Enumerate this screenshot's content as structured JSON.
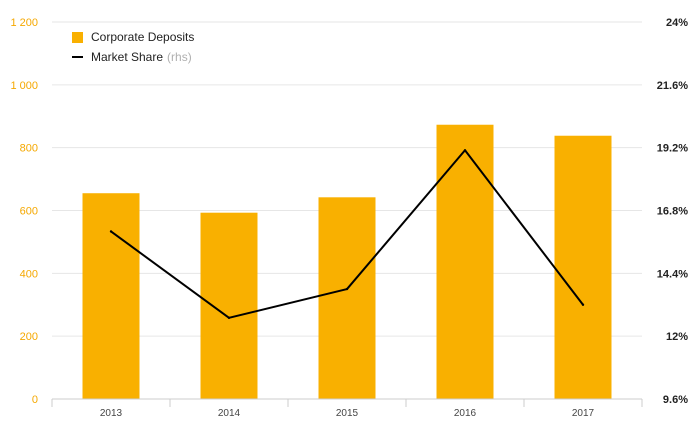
{
  "colors": {
    "bar": "#f9b000",
    "line": "#000000",
    "left_axis": "#f5a800"
  },
  "legend": {
    "bar_label": "Corporate Deposits",
    "line_label": "Market Share",
    "line_suffix": "(rhs)"
  },
  "chart_data": {
    "type": "bar",
    "categories": [
      "2013",
      "2014",
      "2015",
      "2016",
      "2017"
    ],
    "series": [
      {
        "name": "Corporate Deposits",
        "type": "bar",
        "axis": "left",
        "values": [
          655,
          593,
          642,
          873,
          838
        ]
      },
      {
        "name": "Market Share",
        "type": "line",
        "axis": "right",
        "values": [
          16.0,
          12.7,
          13.8,
          19.1,
          13.2
        ]
      }
    ],
    "left_axis": {
      "min": 0,
      "max": 1200,
      "ticks": [
        "0",
        "200",
        "400",
        "600",
        "800",
        "1 000",
        "1 200"
      ]
    },
    "right_axis": {
      "min": 9.6,
      "max": 24,
      "ticks": [
        "9.6%",
        "12%",
        "14.4%",
        "16.8%",
        "19.2%",
        "21.6%",
        "24%"
      ]
    },
    "grid": true,
    "legend_position": "top-left"
  }
}
